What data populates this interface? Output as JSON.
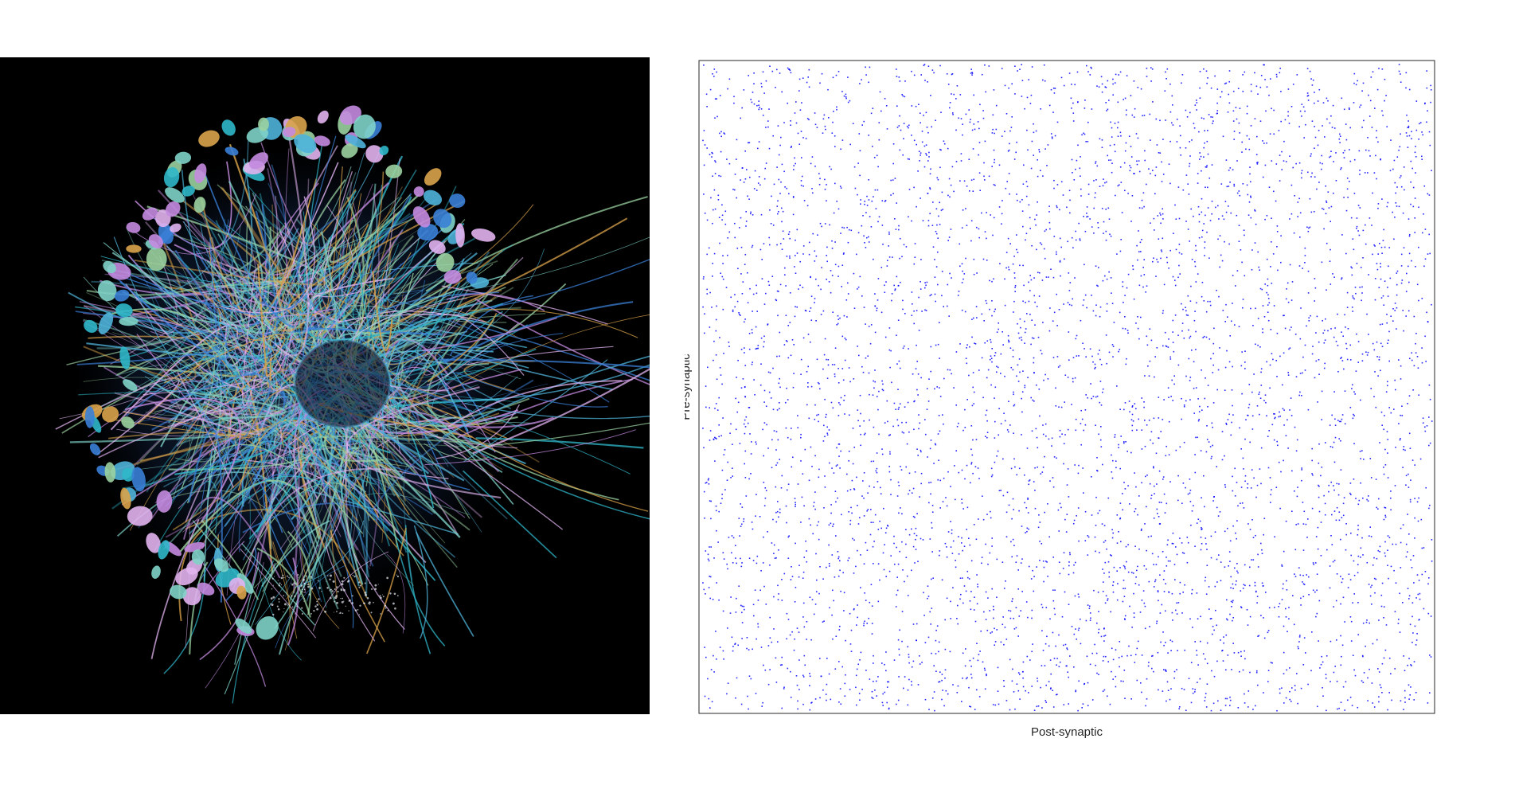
{
  "figure": {
    "left_panel": {
      "background": "#000000",
      "palette": [
        "#4fb3d9",
        "#7fd3c8",
        "#c48be0",
        "#d9a34a",
        "#3a7fd6",
        "#9ad1a0",
        "#e1b3f0",
        "#2fb7c9"
      ]
    }
  },
  "chart_data": {
    "type": "scatter",
    "title": "",
    "xlabel": "Post-synaptic",
    "ylabel": "Pre-synaptic",
    "xticks": [],
    "yticks": [],
    "grid": false,
    "legend": "none",
    "marker_color": "#0000ff",
    "frame_color": "#262626",
    "density": "uniform sparse random connectivity, approximately 5000 points",
    "point_count": 5000
  }
}
